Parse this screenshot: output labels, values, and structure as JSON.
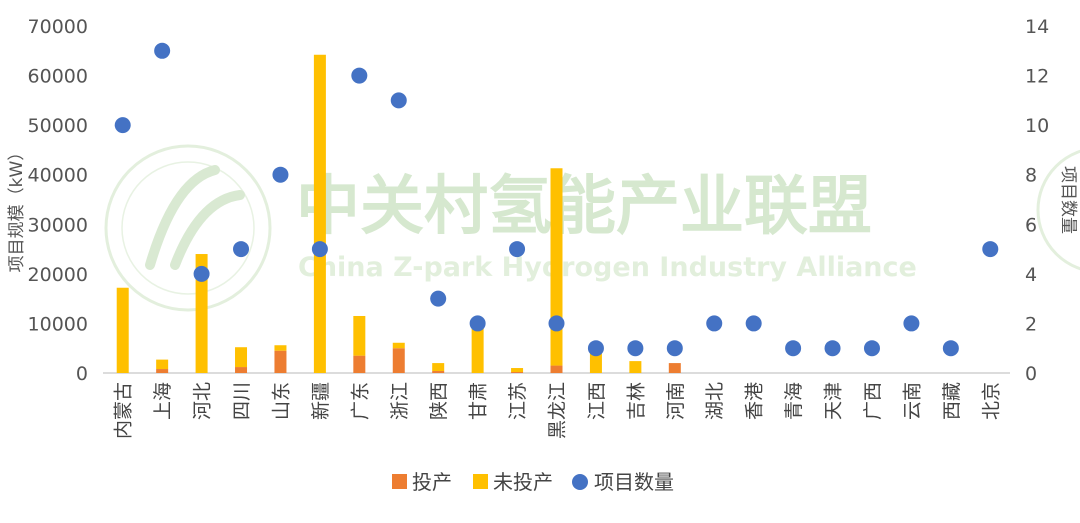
{
  "watermark": {
    "cn": "中关村氢能产业联盟",
    "en": "China Z-park Hydrogen Industry Alliance"
  },
  "chart_data": {
    "type": "bar",
    "stacked": true,
    "categories": [
      "内蒙古",
      "上海",
      "河北",
      "四川",
      "山东",
      "新疆",
      "广东",
      "浙江",
      "陕西",
      "甘肃",
      "江苏",
      "黑龙江",
      "江西",
      "吉林",
      "河南",
      "湖北",
      "香港",
      "青海",
      "天津",
      "广西",
      "云南",
      "西藏",
      "北京"
    ],
    "series": [
      {
        "name": "投产",
        "type": "bar",
        "axis": "left",
        "color": "#ed7d31",
        "values": [
          0,
          800,
          0,
          1200,
          4500,
          0,
          3500,
          5000,
          400,
          0,
          200,
          1500,
          0,
          0,
          2000,
          0,
          0,
          0,
          0,
          0,
          0,
          0,
          0
        ]
      },
      {
        "name": "未投产",
        "type": "bar",
        "axis": "left",
        "color": "#ffc000",
        "values": [
          17200,
          1900,
          24000,
          4000,
          1100,
          64200,
          8000,
          1100,
          1600,
          9800,
          800,
          39800,
          4000,
          2400,
          0,
          0,
          0,
          0,
          0,
          0,
          0,
          0,
          0
        ]
      },
      {
        "name": "项目数量",
        "type": "scatter",
        "axis": "right",
        "color": "#4472c4",
        "values": [
          10,
          13,
          4,
          5,
          8,
          5,
          12,
          11,
          3,
          2,
          5,
          2,
          1,
          1,
          1,
          2,
          2,
          1,
          1,
          1,
          2,
          1,
          5
        ]
      }
    ],
    "y_left": {
      "label": "项目规模（kW）",
      "ylim": [
        0,
        70000
      ],
      "ticks": [
        "0",
        "10000",
        "20000",
        "30000",
        "40000",
        "50000",
        "60000",
        "70000"
      ]
    },
    "y_right": {
      "label": "项目数量",
      "ylim": [
        0,
        14
      ],
      "ticks": [
        "0",
        "2",
        "4",
        "6",
        "8",
        "10",
        "12",
        "14"
      ]
    },
    "grid": false,
    "legend": {
      "position": "bottom",
      "labels": [
        "投产",
        "未投产",
        "项目数量"
      ]
    }
  }
}
